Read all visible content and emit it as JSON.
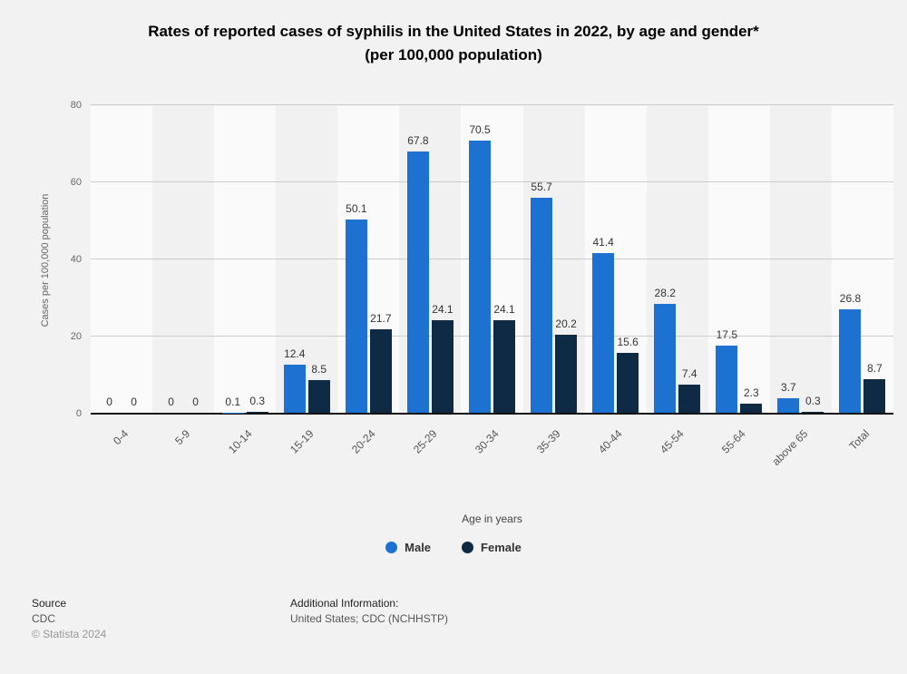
{
  "title": {
    "line1": "Rates of reported cases of syphilis in the United States in 2022, by age and gender*",
    "line2": "(per 100,000 population)"
  },
  "chart_data": {
    "type": "bar",
    "categories": [
      "0-4",
      "5-9",
      "10-14",
      "15-19",
      "20-24",
      "25-29",
      "30-34",
      "35-39",
      "40-44",
      "45-54",
      "55-64",
      "above 65",
      "Total"
    ],
    "series": [
      {
        "name": "Male",
        "color": "#1c71d1",
        "values": [
          0,
          0,
          0.1,
          12.4,
          50.1,
          67.8,
          70.5,
          55.7,
          41.4,
          28.2,
          17.5,
          3.7,
          26.8
        ]
      },
      {
        "name": "Female",
        "color": "#0e2a45",
        "values": [
          0,
          0,
          0.3,
          8.5,
          21.7,
          24.1,
          24.1,
          20.2,
          15.6,
          7.4,
          2.3,
          0.3,
          8.7
        ]
      }
    ],
    "title": "Rates of reported cases of syphilis in the United States in 2022, by age and gender* (per 100,000 population)",
    "xlabel": "Age in years",
    "ylabel": "Cases per 100,000 population",
    "ylim": [
      0,
      80
    ],
    "yticks": [
      0,
      20,
      40,
      60,
      80
    ],
    "grid": true,
    "legend_position": "bottom"
  },
  "footer": {
    "source_label": "Source",
    "source_value": "CDC",
    "copyright": "© Statista 2024",
    "additional_label": "Additional Information:",
    "additional_value": "United States; CDC (NCHHSTP)"
  }
}
